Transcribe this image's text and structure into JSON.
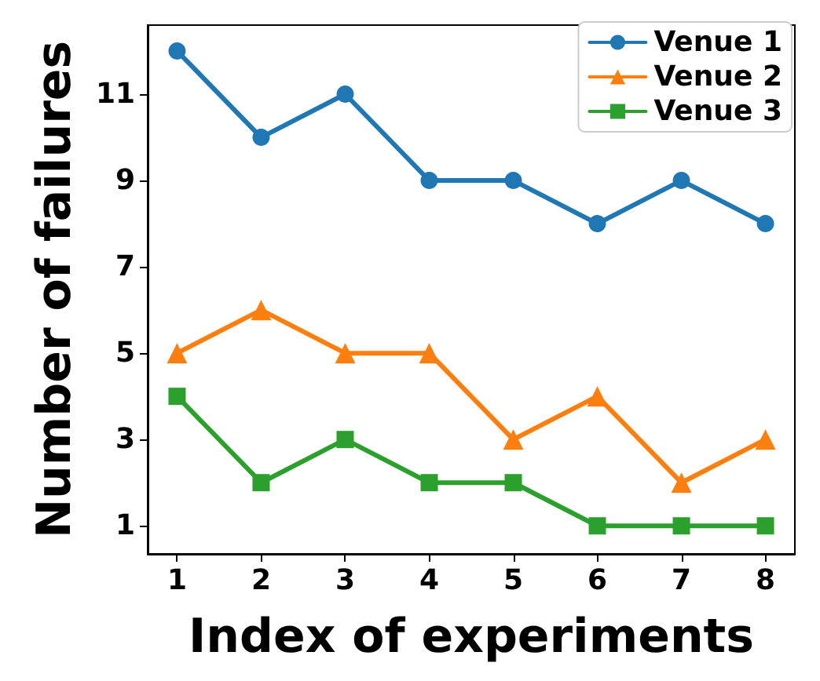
{
  "chart_data": {
    "type": "line",
    "xlabel": "Index of experiments",
    "ylabel": "Number of failures",
    "x": [
      1,
      2,
      3,
      4,
      5,
      6,
      7,
      8
    ],
    "series": [
      {
        "name": "Venue 1",
        "color": "#1f77b4",
        "marker": "circle",
        "values": [
          12,
          10,
          11,
          9,
          9,
          8,
          9,
          8
        ]
      },
      {
        "name": "Venue 2",
        "color": "#ff7f0e",
        "marker": "triangle",
        "values": [
          5,
          6,
          5,
          5,
          3,
          4,
          2,
          3
        ]
      },
      {
        "name": "Venue 3",
        "color": "#2ca02c",
        "marker": "square",
        "values": [
          4,
          2,
          3,
          2,
          2,
          1,
          1,
          1
        ]
      }
    ],
    "xlim": [
      0.65,
      8.35
    ],
    "xticks": [
      1,
      2,
      3,
      4,
      5,
      6,
      7,
      8
    ],
    "ylim": [
      0.35,
      12.6
    ],
    "yticks": [
      1,
      3,
      5,
      7,
      9,
      11
    ],
    "grid": false,
    "legend": "top right",
    "line_style": "solid"
  }
}
